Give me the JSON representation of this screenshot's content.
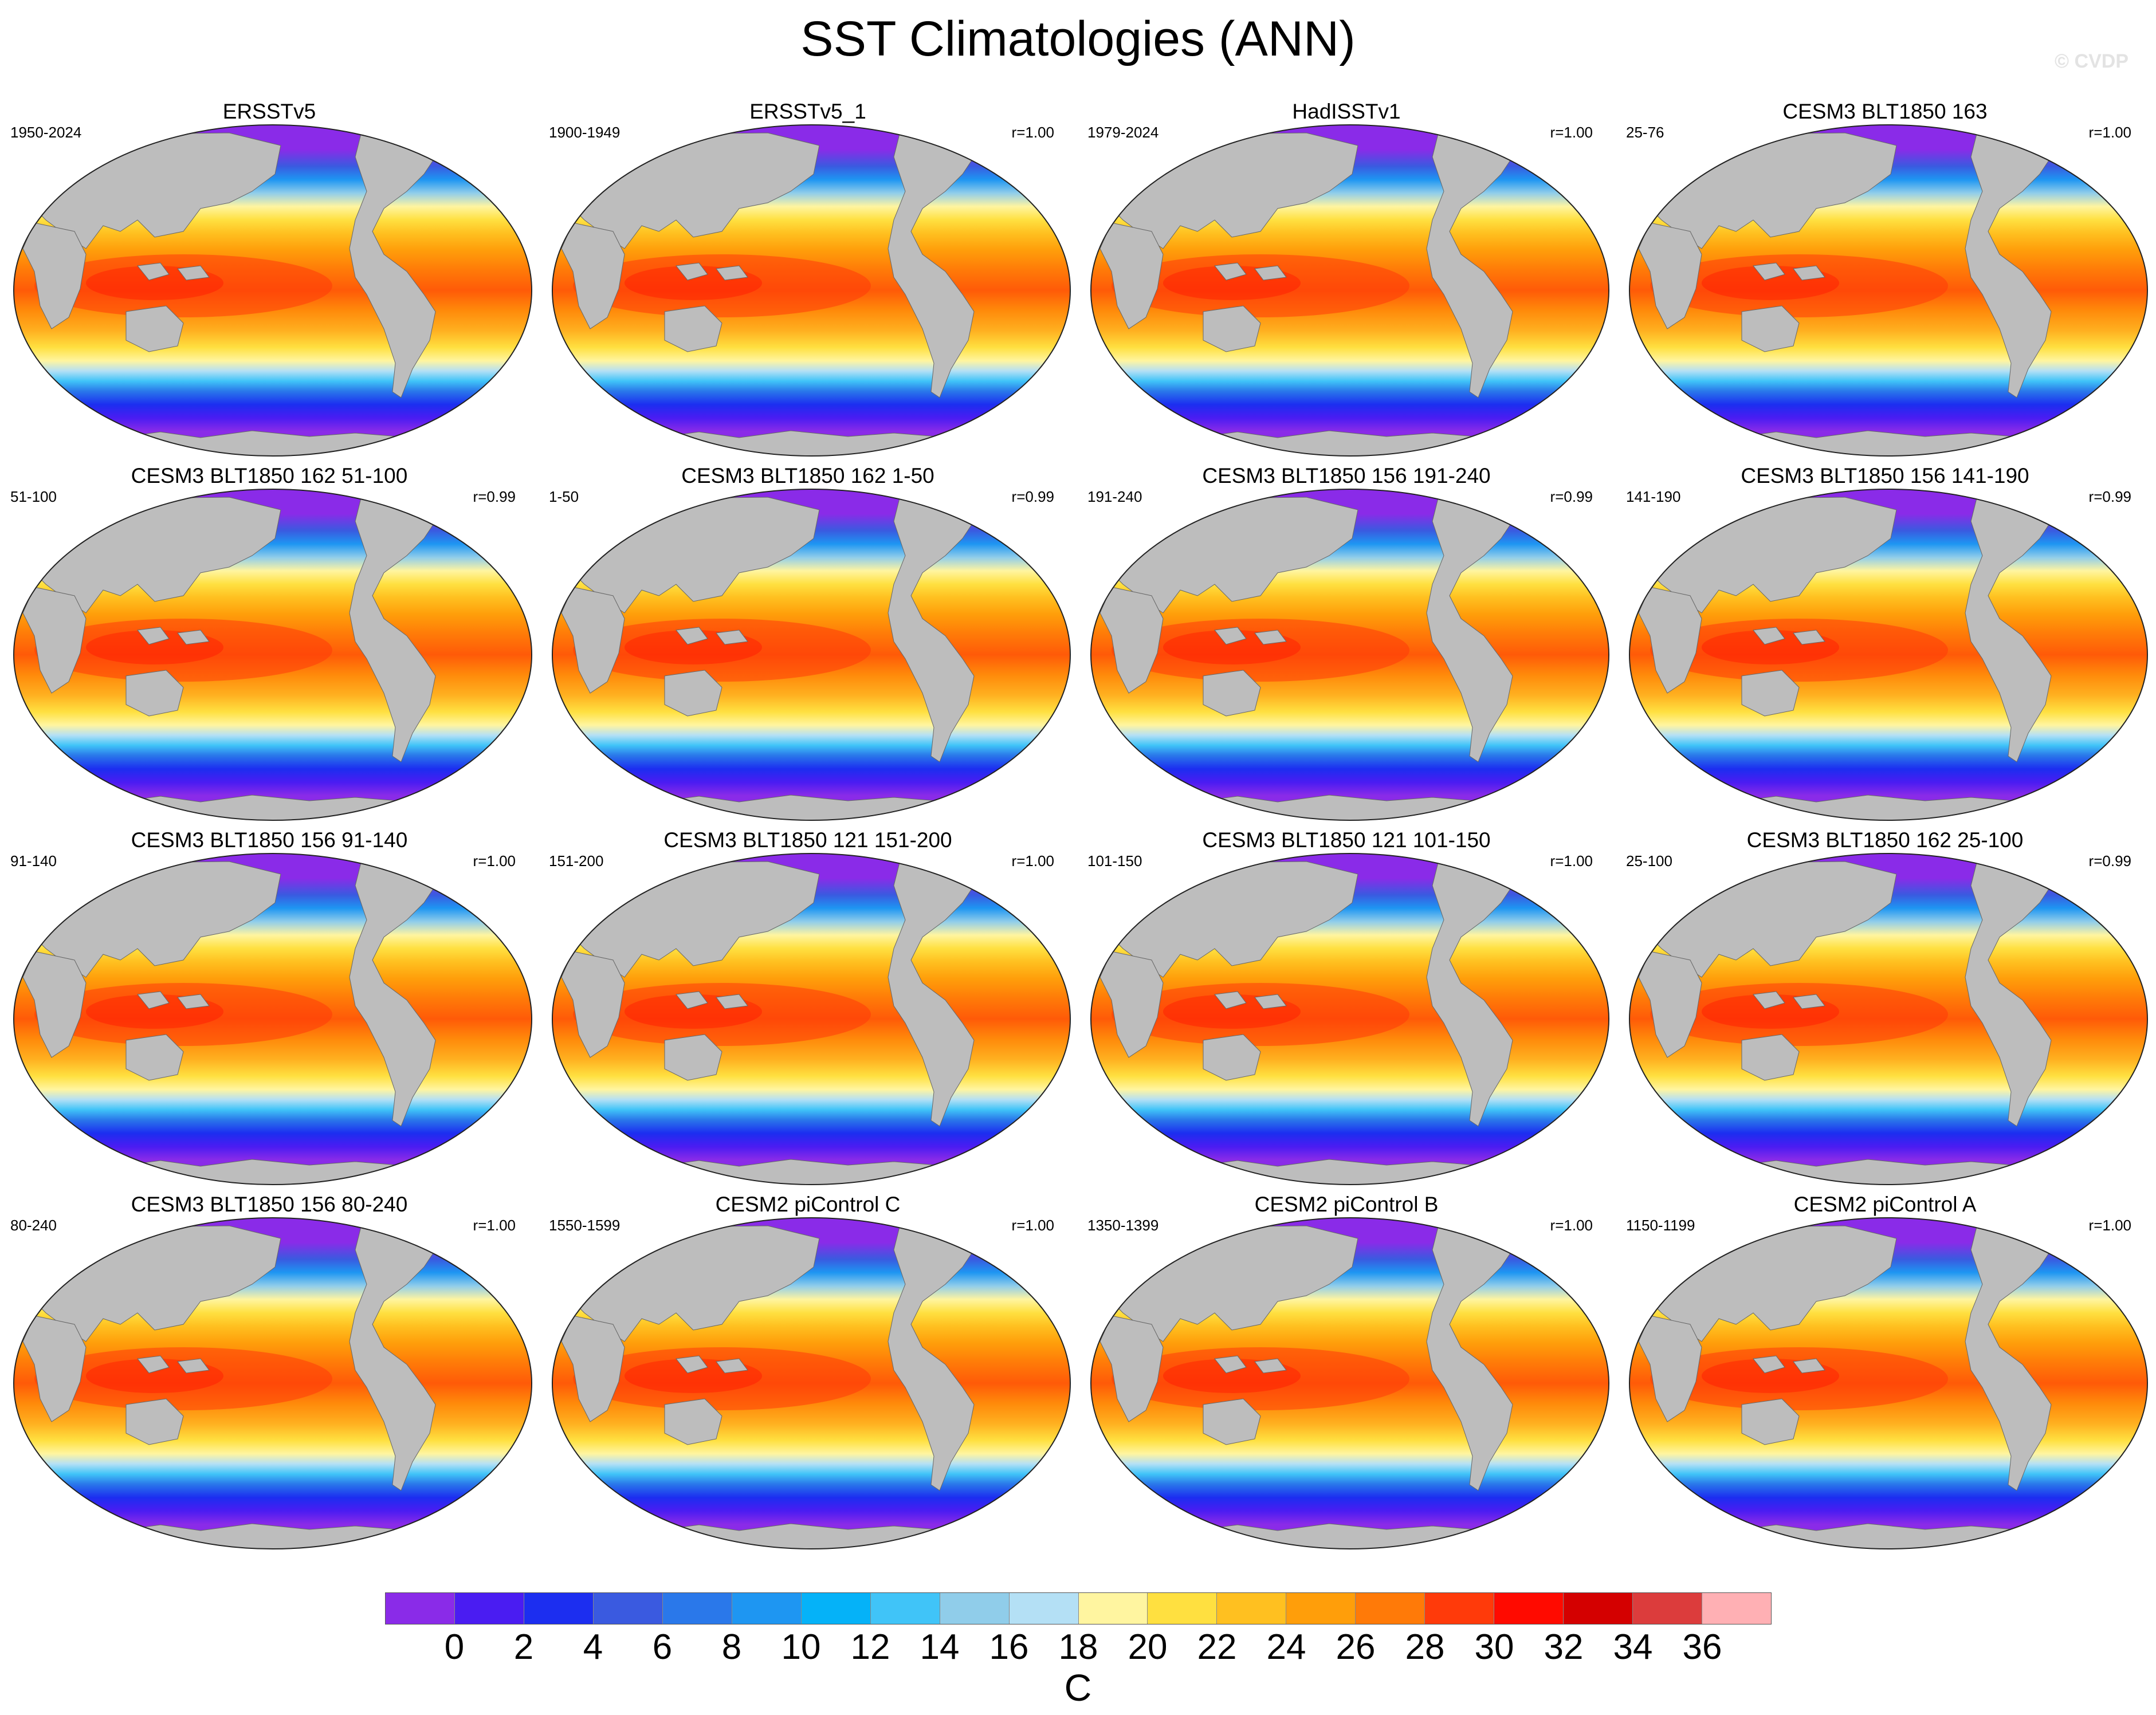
{
  "title": "SST Climatologies (ANN)",
  "watermark": "© CVDP",
  "panels": [
    {
      "title": "ERSSTv5",
      "left": "1950-2024",
      "right": ""
    },
    {
      "title": "ERSSTv5_1",
      "left": "1900-1949",
      "right": "r=1.00"
    },
    {
      "title": "HadISSTv1",
      "left": "1979-2024",
      "right": "r=1.00"
    },
    {
      "title": "CESM3 BLT1850 163",
      "left": "25-76",
      "right": "r=1.00"
    },
    {
      "title": "CESM3 BLT1850 162 51-100",
      "left": "51-100",
      "right": "r=0.99"
    },
    {
      "title": "CESM3 BLT1850 162 1-50",
      "left": "1-50",
      "right": "r=0.99"
    },
    {
      "title": "CESM3 BLT1850 156 191-240",
      "left": "191-240",
      "right": "r=0.99"
    },
    {
      "title": "CESM3 BLT1850 156 141-190",
      "left": "141-190",
      "right": "r=0.99"
    },
    {
      "title": "CESM3 BLT1850 156 91-140",
      "left": "91-140",
      "right": "r=1.00"
    },
    {
      "title": "CESM3 BLT1850 121 151-200",
      "left": "151-200",
      "right": "r=1.00"
    },
    {
      "title": "CESM3 BLT1850 121 101-150",
      "left": "101-150",
      "right": "r=1.00"
    },
    {
      "title": "CESM3 BLT1850 162 25-100",
      "left": "25-100",
      "right": "r=0.99"
    },
    {
      "title": "CESM3 BLT1850 156 80-240",
      "left": "80-240",
      "right": "r=1.00"
    },
    {
      "title": "CESM2 piControl C",
      "left": "1550-1599",
      "right": "r=1.00"
    },
    {
      "title": "CESM2 piControl B",
      "left": "1350-1399",
      "right": "r=1.00"
    },
    {
      "title": "CESM2 piControl A",
      "left": "1150-1199",
      "right": "r=1.00"
    }
  ],
  "colorbar": {
    "colors": [
      "#8a2be8",
      "#4a1cf2",
      "#1c2ef0",
      "#3a5ae0",
      "#2a78ea",
      "#1e96f2",
      "#05b2f8",
      "#40c4f8",
      "#90cdea",
      "#b4e0f5",
      "#fff5a0",
      "#ffe040",
      "#ffc020",
      "#ff9e0a",
      "#ff7a08",
      "#ff3a0a",
      "#ff0a00",
      "#d40000",
      "#dc3c3c",
      "#ffb0b4"
    ],
    "labels": [
      "0",
      "2",
      "4",
      "6",
      "8",
      "10",
      "12",
      "14",
      "16",
      "18",
      "20",
      "22",
      "24",
      "26",
      "28",
      "30",
      "32",
      "34",
      "36"
    ],
    "unit": "C"
  }
}
